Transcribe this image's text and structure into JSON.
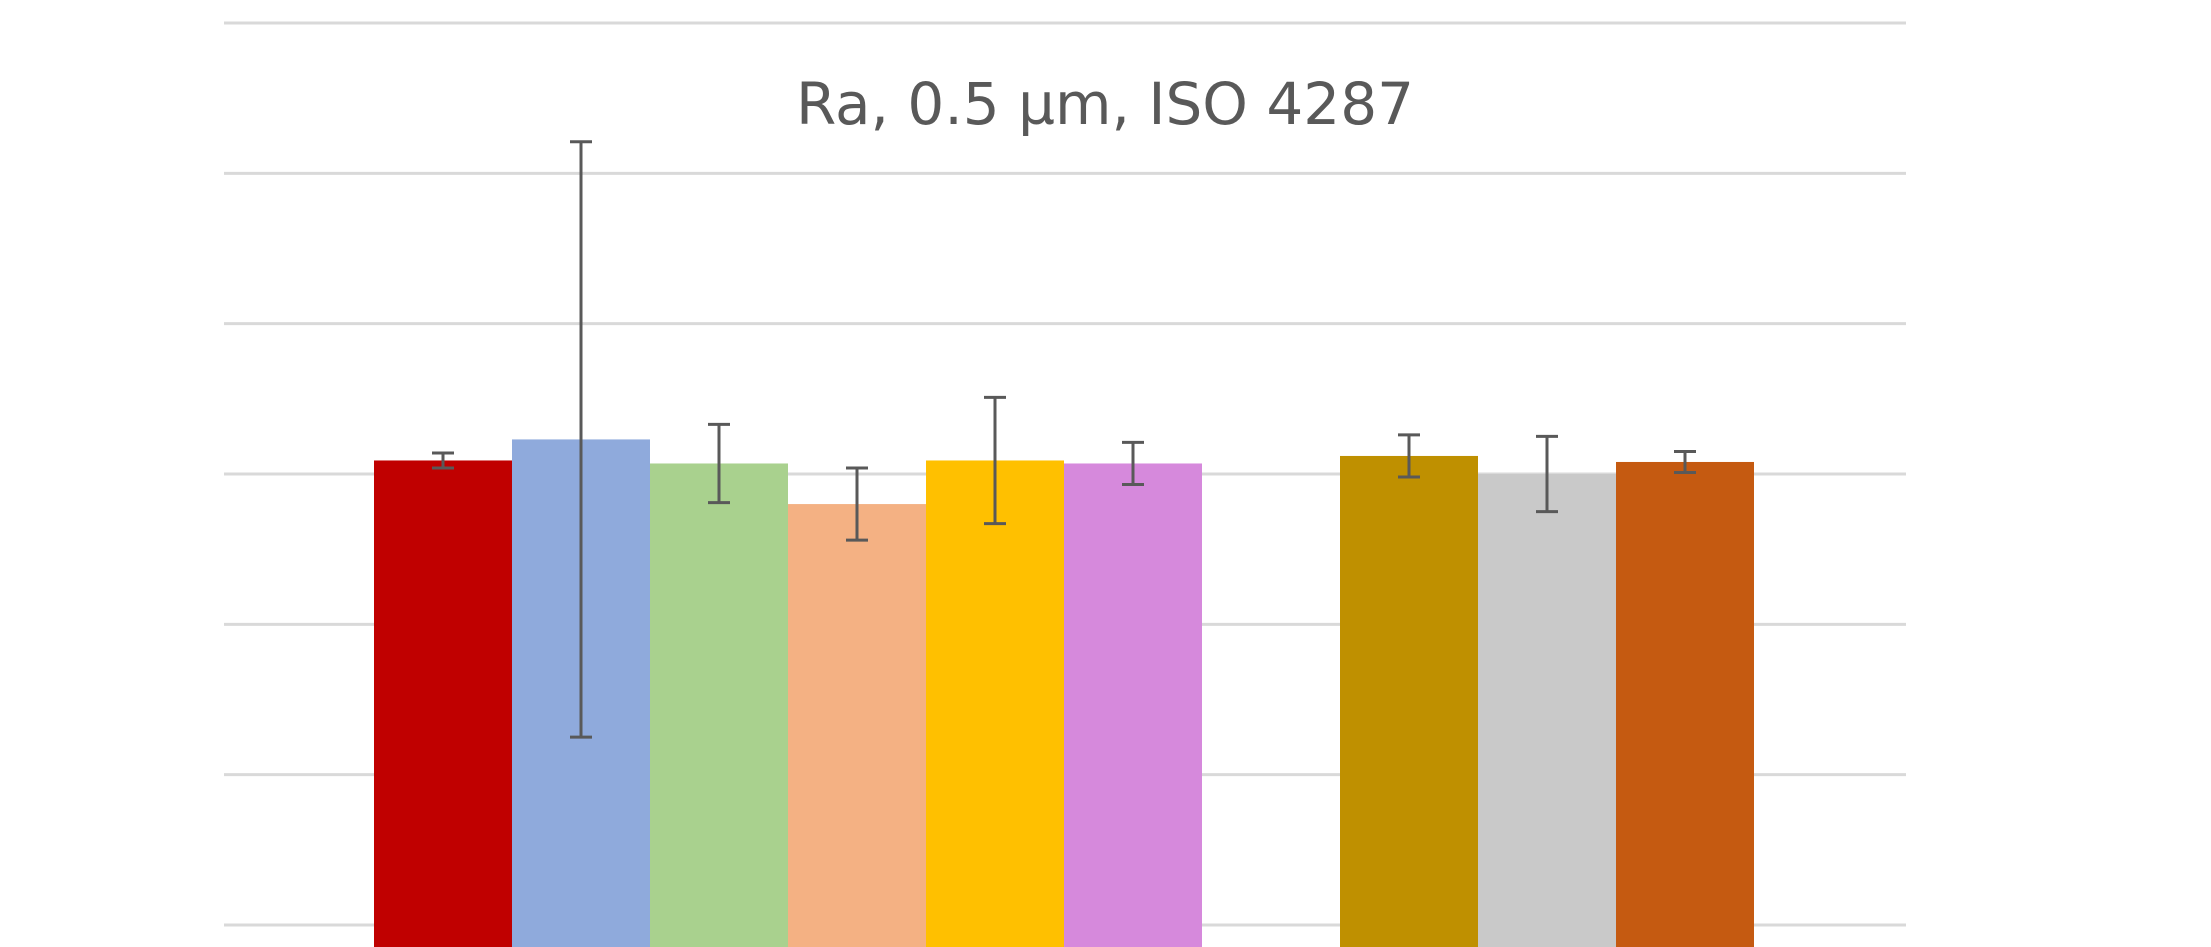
{
  "chart_data": {
    "type": "bar",
    "title": "Ra, 0.5 µm, ISO 4287",
    "grid": true,
    "ylim": [
      0.2,
      0.8
    ],
    "gridlines": [
      0.2,
      0.3,
      0.4,
      0.5,
      0.6,
      0.7,
      0.8
    ],
    "groups": [
      {
        "bars": [
          {
            "value": 0.509,
            "error": 0.005,
            "color": "#C00000"
          },
          {
            "value": 0.523,
            "error": 0.198,
            "color": "#8FAADC"
          },
          {
            "value": 0.507,
            "error": 0.026,
            "color": "#A9D18E"
          },
          {
            "value": 0.48,
            "error": 0.024,
            "color": "#F4B183"
          },
          {
            "value": 0.509,
            "error": 0.042,
            "color": "#FFC000"
          },
          {
            "value": 0.507,
            "error": 0.014,
            "color": "#D689DC"
          }
        ]
      },
      {
        "bars": [
          {
            "value": 0.512,
            "error": 0.014,
            "color": "#BF9000"
          },
          {
            "value": 0.5,
            "error": 0.025,
            "color": "#C9C9C9"
          },
          {
            "value": 0.508,
            "error": 0.007,
            "color": "#C55A11"
          }
        ]
      }
    ]
  }
}
